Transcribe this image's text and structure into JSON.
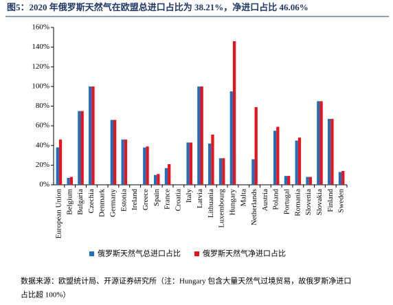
{
  "chart_data": {
    "type": "bar",
    "title": "图5：2020 年俄罗斯天然气在欧盟总进口占比为 38.21%，净进口占比 46.06%",
    "categories": [
      "European Union",
      "Belgium",
      "Bulgaria",
      "Czechia",
      "Denmark",
      "Germany",
      "Estonia",
      "Ireland",
      "Greece",
      "Spain",
      "France",
      "Croatia",
      "Italy",
      "Latvia",
      "Lithuania",
      "Luxembourg",
      "Hungary",
      "Malta",
      "Netherlands",
      "Austria",
      "Poland",
      "Portugal",
      "Romania",
      "Slovenia",
      "Slovakia",
      "Finland",
      "Sweden"
    ],
    "series": [
      {
        "name": "俄罗斯天然气总进口占比",
        "color": "#1f6fbf",
        "values": [
          38,
          7,
          75,
          100,
          0,
          66,
          46,
          0,
          38,
          10,
          17,
          0,
          43,
          100,
          42,
          27,
          95,
          0,
          26,
          0,
          55,
          9,
          45,
          8,
          85,
          67,
          13
        ]
      },
      {
        "name": "俄罗斯天然气净进口占比",
        "color": "#e8141c",
        "values": [
          46,
          8,
          75,
          100,
          0,
          66,
          46,
          0,
          39,
          11,
          21,
          0,
          43,
          100,
          51,
          27,
          146,
          0,
          79,
          0,
          59,
          9,
          48,
          8,
          85,
          67,
          14
        ]
      }
    ],
    "ylim": [
      0,
      160
    ],
    "yticks": [
      {
        "value": 0,
        "label": "0%"
      },
      {
        "value": 20,
        "label": "20%"
      },
      {
        "value": 40,
        "label": "40%"
      },
      {
        "value": 60,
        "label": "60%"
      },
      {
        "value": 80,
        "label": "80%"
      },
      {
        "value": 100,
        "label": "100%"
      },
      {
        "value": 120,
        "label": "120%"
      },
      {
        "value": 140,
        "label": "140%"
      },
      {
        "value": 160,
        "label": "160%"
      }
    ],
    "source": [
      "数据来源：欧盟统计局、开源证券研究所（注：Hungary 包含大量天然气过境贸易，故俄罗斯净进口",
      "占比超 100%）"
    ]
  }
}
